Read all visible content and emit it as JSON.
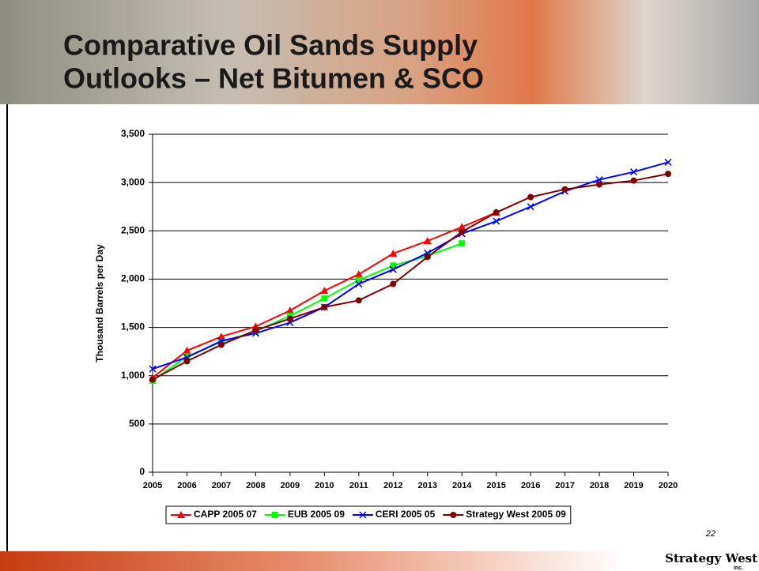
{
  "slide": {
    "title_lines": [
      "Comparative Oil Sands Supply",
      "Outlooks – Net Bitumen & SCO"
    ],
    "page_number": "22",
    "logo": "Strategy West",
    "logo_sub": "Inc."
  },
  "chart_data": {
    "type": "line",
    "y_label": "Thousand Barrels per Day",
    "categories": [
      "2005",
      "2006",
      "2007",
      "2008",
      "2009",
      "2010",
      "2011",
      "2012",
      "2013",
      "2014",
      "2015",
      "2016",
      "2017",
      "2018",
      "2019",
      "2020"
    ],
    "series": [
      {
        "name": "CAPP 2005 07",
        "color": "#ff0000",
        "marker": "triangle",
        "values": [
          980,
          1260,
          1405,
          1510,
          1675,
          1880,
          2050,
          2265,
          2395,
          2540,
          2690,
          null,
          null,
          null,
          null,
          null
        ]
      },
      {
        "name": "EUB 2005 09",
        "color": "#00ff00",
        "marker": "square",
        "values": [
          950,
          1200,
          1350,
          1460,
          1620,
          1800,
          1990,
          2140,
          2240,
          2370,
          null,
          null,
          null,
          null,
          null,
          null
        ]
      },
      {
        "name": "CERI 2005 05",
        "color": "#0000ff",
        "marker": "x",
        "values": [
          1070,
          1190,
          1360,
          1440,
          1550,
          1710,
          1950,
          2100,
          2270,
          2470,
          2600,
          2750,
          2910,
          3030,
          3110,
          3210
        ]
      },
      {
        "name": "Strategy West 2005 09",
        "color": "#800000",
        "marker": "circle",
        "values": [
          960,
          1150,
          1320,
          1470,
          1590,
          1710,
          1780,
          1950,
          2230,
          2490,
          2690,
          2850,
          2930,
          2980,
          3020,
          3090
        ]
      }
    ],
    "ylim": [
      0,
      3500
    ],
    "yticks": [
      0,
      500,
      {
        "value": 1000,
        "label": "1,000"
      },
      {
        "value": 1500,
        "label": "1,500"
      },
      {
        "value": 2000,
        "label": "2,000"
      },
      {
        "value": 2500,
        "label": "2,500"
      },
      {
        "value": 3000,
        "label": "3,000"
      },
      {
        "value": 3500,
        "label": "3,500"
      }
    ],
    "grid": true
  }
}
